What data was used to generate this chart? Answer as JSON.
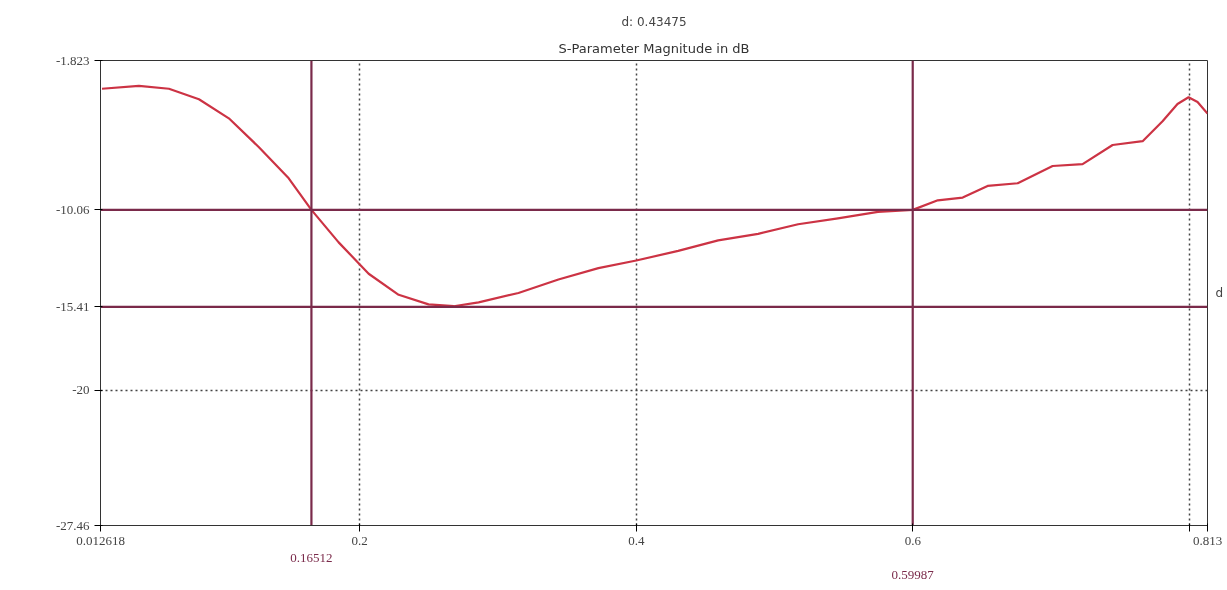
{
  "chart_data": {
    "type": "line",
    "title": "S-Parameter Magnitude in dB",
    "annotations": [
      "d: 0.43475",
      "d"
    ],
    "xlim": [
      0.012618,
      0.813
    ],
    "ylim": [
      -27.46,
      -1.823
    ],
    "xticks": [
      0.012618,
      0.2,
      0.4,
      0.6,
      {
        "value": 0.8,
        "label": null
      },
      0.813
    ],
    "yticks": [
      -27.46,
      -20,
      -1.823
    ],
    "grid": true,
    "marker": "none",
    "line_style": "solid",
    "ref_lines": [
      {
        "axis": "x",
        "value": 0.16512,
        "label": "0.16512",
        "color": "#7a2a4a"
      },
      {
        "axis": "x",
        "value": 0.59987,
        "label": "0.59987",
        "color": "#7a2a4a"
      },
      {
        "axis": "y",
        "value": -10.06,
        "label": "-10.06",
        "color": "#7a2a4a"
      },
      {
        "axis": "y",
        "value": -15.41,
        "label": "-15.41",
        "color": "#7a2a4a"
      }
    ],
    "series": [
      {
        "color": "#cc3344",
        "x": [
          0.0137,
          0.0404,
          0.0621,
          0.0838,
          0.1054,
          0.127,
          0.1487,
          0.16512,
          0.1848,
          0.2065,
          0.2282,
          0.2498,
          0.268,
          0.286,
          0.3148,
          0.3437,
          0.3726,
          0.4,
          0.4303,
          0.4592,
          0.4881,
          0.517,
          0.5458,
          0.5747,
          0.59987,
          0.618,
          0.636,
          0.654,
          0.6758,
          0.701,
          0.7227,
          0.7444,
          0.7661,
          0.7805,
          0.7913,
          0.7993,
          0.8058,
          0.813
        ],
        "values": [
          -3.38,
          -3.22,
          -3.38,
          -3.96,
          -5.01,
          -6.59,
          -8.32,
          -10.06,
          -11.85,
          -13.58,
          -14.74,
          -15.27,
          -15.37,
          -15.16,
          -14.64,
          -13.9,
          -13.27,
          -12.85,
          -12.32,
          -11.74,
          -11.38,
          -10.85,
          -10.53,
          -10.17,
          -10.06,
          -9.53,
          -9.38,
          -8.74,
          -8.59,
          -7.64,
          -7.54,
          -6.48,
          -6.27,
          -5.17,
          -4.22,
          -3.85,
          -4.11,
          -4.75
        ]
      }
    ]
  }
}
